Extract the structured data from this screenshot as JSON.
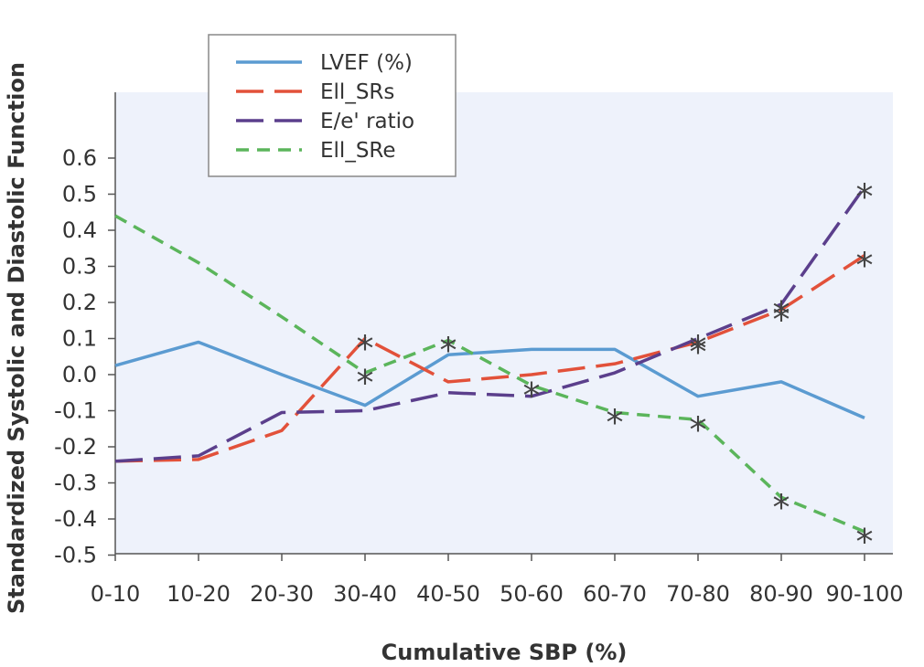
{
  "chart_data": {
    "type": "line",
    "categories": [
      "0-10",
      "10-20",
      "20-30",
      "30-40",
      "40-50",
      "50-60",
      "60-70",
      "70-80",
      "80-90",
      "90-100"
    ],
    "ylim": [
      -0.5,
      0.6
    ],
    "yticks": [
      0.6,
      0.5,
      0.4,
      0.3,
      0.2,
      0.1,
      0.0,
      -0.1,
      -0.2,
      -0.3,
      -0.4,
      -0.5
    ],
    "ytick_labels": [
      "0.6",
      "0.5",
      "0.4",
      "0.3",
      "0.2",
      "0.1",
      "0.0",
      "-0.1",
      "-0.2",
      "-0.3",
      "-0.4",
      "-0.5"
    ],
    "xlabel": "Cumulative SBP (%)",
    "ylabel": "Standardized Systolic and Diastolic Function",
    "legend_position": "top-left",
    "significance_marker": "*",
    "series": [
      {
        "name": "LVEF (%)",
        "color": "#5b9bd1",
        "dash": "solid",
        "values": [
          0.025,
          0.09,
          0.0,
          -0.085,
          0.055,
          0.07,
          0.07,
          -0.06,
          -0.02,
          -0.12
        ],
        "significant": []
      },
      {
        "name": "Ell_SRs",
        "color": "#e2513a",
        "dash": "long",
        "values": [
          -0.24,
          -0.235,
          -0.155,
          0.1,
          -0.02,
          0.0,
          0.03,
          0.09,
          0.18,
          0.33
        ],
        "significant": [
          3,
          7,
          8,
          9
        ]
      },
      {
        "name": "E/e' ratio",
        "color": "#5b3f8c",
        "dash": "long",
        "values": [
          -0.24,
          -0.225,
          -0.105,
          -0.1,
          -0.05,
          -0.06,
          0.005,
          0.1,
          0.195,
          0.52
        ],
        "significant": [
          7,
          8,
          9
        ]
      },
      {
        "name": "Ell_SRe",
        "color": "#5bb55b",
        "dash": "short",
        "values": [
          0.44,
          0.31,
          0.16,
          0.005,
          0.095,
          -0.03,
          -0.105,
          -0.125,
          -0.34,
          -0.435
        ],
        "significant": [
          3,
          4,
          5,
          6,
          7,
          8,
          9
        ]
      }
    ]
  }
}
